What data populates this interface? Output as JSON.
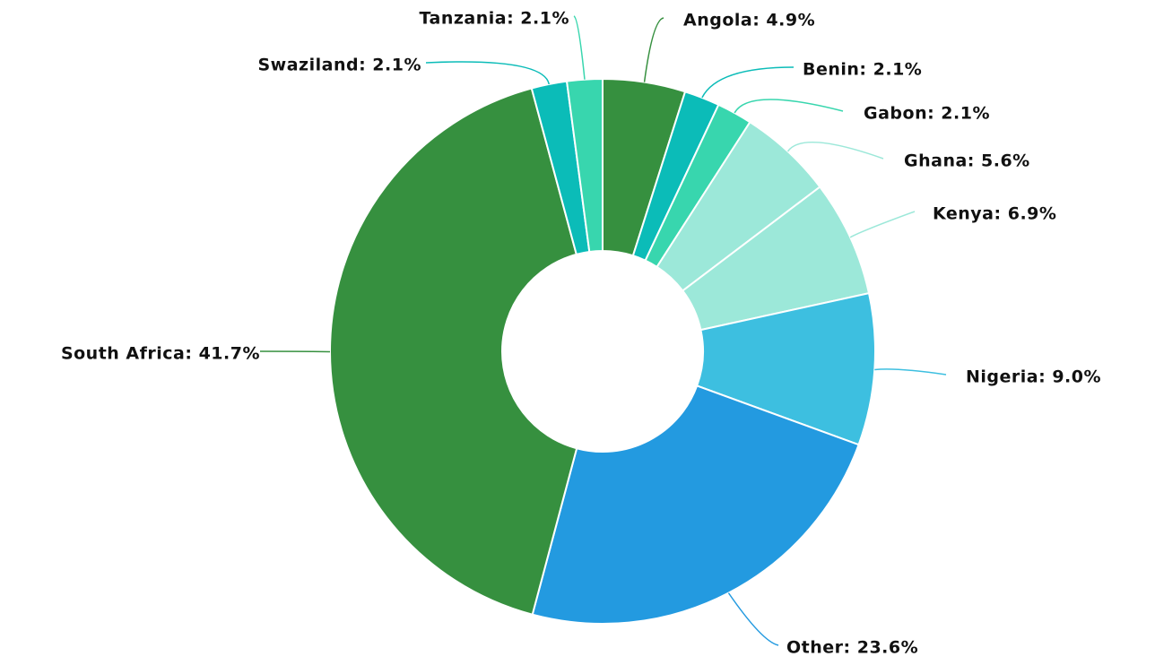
{
  "chart_data": {
    "type": "donut",
    "categories": [
      "Angola",
      "Benin",
      "Gabon",
      "Ghana",
      "Kenya",
      "Nigeria",
      "Other",
      "South Africa",
      "Swaziland",
      "Tanzania"
    ],
    "values": [
      4.9,
      2.1,
      2.1,
      5.6,
      6.9,
      9.0,
      23.6,
      41.7,
      2.1,
      2.1
    ],
    "value_labels": [
      "Angola: 4.9%",
      "Benin: 2.1%",
      "Gabon: 2.1%",
      "Ghana: 5.6%",
      "Kenya: 6.9%",
      "Nigeria: 9.0%",
      "Other: 23.6%",
      "South Africa: 41.7%",
      "Swaziland: 2.1%",
      "Tanzania: 2.1%"
    ],
    "colors": [
      "#36903f",
      "#0bbcb8",
      "#38d6ae",
      "#9ce8d9",
      "#9ce8d9",
      "#3dbfe0",
      "#239ae0",
      "#36903f",
      "#0bbcb8",
      "#38d6ae"
    ]
  }
}
